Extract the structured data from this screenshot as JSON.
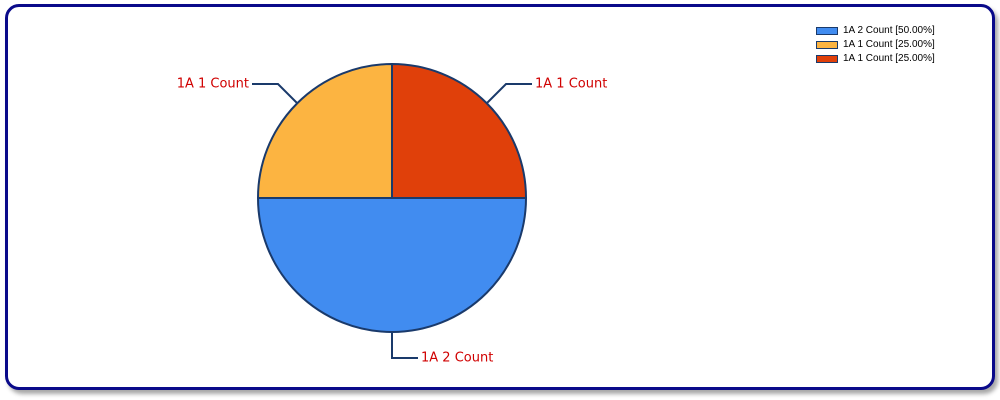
{
  "chart_data": {
    "type": "pie",
    "slices": [
      {
        "label": "1A 2 Count",
        "value": 50.0,
        "color": "#418CF0"
      },
      {
        "label": "1A 1 Count",
        "value": 25.0,
        "color": "#FCB441"
      },
      {
        "label": "1A 1 Count",
        "value": 25.0,
        "color": "#E0400A"
      }
    ],
    "legend": {
      "placement": "top-right",
      "entries": [
        {
          "text": "1A 2 Count [50.00%]",
          "color": "#418CF0"
        },
        {
          "text": "1A 1 Count [25.00%]",
          "color": "#FCB441"
        },
        {
          "text": "1A 1 Count [25.00%]",
          "color": "#E0400A"
        }
      ]
    },
    "data_labels": [
      "1A 1 Count",
      "1A 1 Count",
      "1A 2 Count"
    ],
    "label_color": "#D00000",
    "outline_color": "#1A3A6B",
    "frame_color": "#0A0A8A"
  }
}
